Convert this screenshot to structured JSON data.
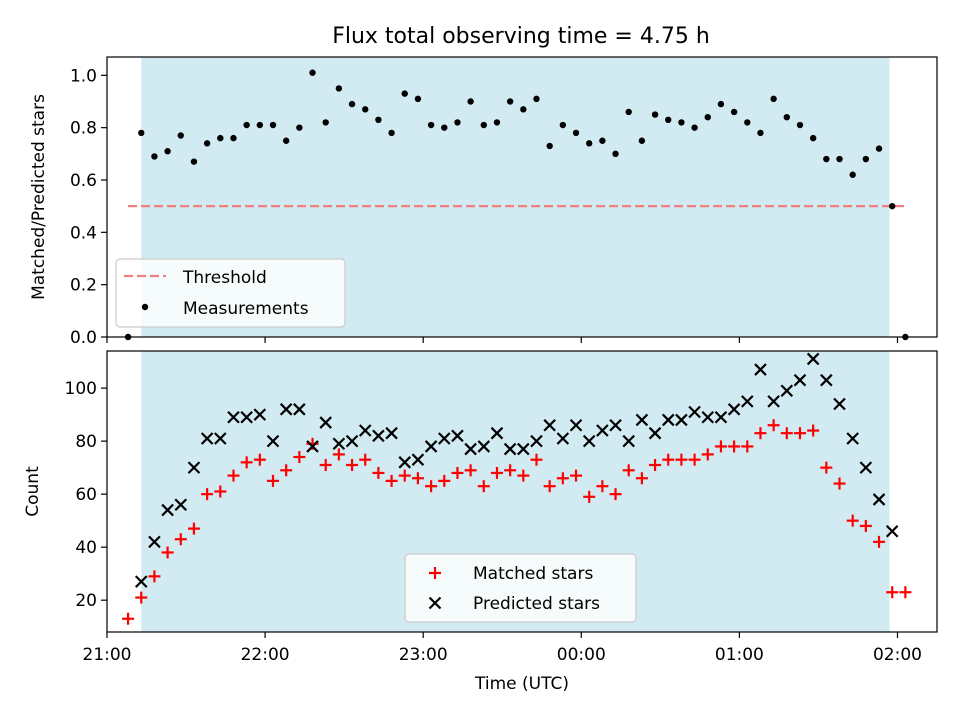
{
  "figure": {
    "title": "Flux total observing time = 4.75 h",
    "colors": {
      "observing_band": "#add8e6",
      "threshold": "#f08080",
      "measurements": "#000000",
      "matched": "#ff0000",
      "predicted": "#000000"
    }
  },
  "chart_data": [
    {
      "type": "scatter",
      "panel": "top",
      "title": "Flux total observing time = 4.75 h",
      "xlabel": "",
      "ylabel": "Matched/Predicted stars",
      "x_ticks": [
        "21:00",
        "22:00",
        "23:00",
        "00:00",
        "01:00",
        "02:00"
      ],
      "x_tick_labels_shown": false,
      "y_ticks": [
        "0.0",
        "0.2",
        "0.4",
        "0.6",
        "0.8",
        "1.0"
      ],
      "ylim": [
        0.0,
        1.07
      ],
      "xlim": [
        "21:00",
        "02:15"
      ],
      "observing_window": [
        "21:13",
        "01:57"
      ],
      "threshold": {
        "name": "Threshold",
        "value": 0.5,
        "x_range": [
          "21:08",
          "02:03"
        ],
        "style": "dashed"
      },
      "legend": {
        "position": "lower left",
        "entries": [
          "Threshold",
          "Measurements"
        ]
      },
      "series": [
        {
          "name": "Measurements",
          "marker": "dot",
          "x": [
            "21:08",
            "21:13",
            "21:18",
            "21:23",
            "21:28",
            "21:33",
            "21:38",
            "21:43",
            "21:48",
            "21:53",
            "21:58",
            "22:03",
            "22:08",
            "22:13",
            "22:18",
            "22:23",
            "22:28",
            "22:33",
            "22:38",
            "22:43",
            "22:48",
            "22:53",
            "22:58",
            "23:03",
            "23:08",
            "23:13",
            "23:18",
            "23:23",
            "23:28",
            "23:33",
            "23:38",
            "23:43",
            "23:48",
            "23:53",
            "23:58",
            "00:03",
            "00:08",
            "00:13",
            "00:18",
            "00:23",
            "00:28",
            "00:33",
            "00:38",
            "00:43",
            "00:48",
            "00:53",
            "00:58",
            "01:03",
            "01:08",
            "01:13",
            "01:18",
            "01:23",
            "01:28",
            "01:33",
            "01:38",
            "01:43",
            "01:48",
            "01:53",
            "01:58",
            "02:03"
          ],
          "y": [
            0.0,
            0.78,
            0.69,
            0.71,
            0.77,
            0.67,
            0.74,
            0.76,
            0.76,
            0.81,
            0.81,
            0.81,
            0.75,
            0.8,
            1.01,
            0.82,
            0.95,
            0.89,
            0.87,
            0.83,
            0.78,
            0.93,
            0.91,
            0.81,
            0.8,
            0.82,
            0.9,
            0.81,
            0.82,
            0.9,
            0.87,
            0.91,
            0.73,
            0.81,
            0.78,
            0.74,
            0.75,
            0.7,
            0.86,
            0.75,
            0.85,
            0.83,
            0.82,
            0.8,
            0.84,
            0.89,
            0.86,
            0.82,
            0.78,
            0.91,
            0.84,
            0.81,
            0.76,
            0.68,
            0.68,
            0.62,
            0.68,
            0.72,
            0.5,
            0.0
          ]
        }
      ]
    },
    {
      "type": "scatter",
      "panel": "bottom",
      "xlabel": "Time (UTC)",
      "ylabel": "Count",
      "x_ticks": [
        "21:00",
        "22:00",
        "23:00",
        "00:00",
        "01:00",
        "02:00"
      ],
      "y_ticks": [
        "20",
        "40",
        "60",
        "80",
        "100"
      ],
      "ylim": [
        8,
        114
      ],
      "xlim": [
        "21:00",
        "02:15"
      ],
      "observing_window": [
        "21:13",
        "01:57"
      ],
      "legend": {
        "position": "lower center",
        "entries": [
          "Matched stars",
          "Predicted stars"
        ]
      },
      "series": [
        {
          "name": "Matched stars",
          "marker": "plus",
          "x": [
            "21:08",
            "21:13",
            "21:18",
            "21:23",
            "21:28",
            "21:33",
            "21:38",
            "21:43",
            "21:48",
            "21:53",
            "21:58",
            "22:03",
            "22:08",
            "22:13",
            "22:18",
            "22:23",
            "22:28",
            "22:33",
            "22:38",
            "22:43",
            "22:48",
            "22:53",
            "22:58",
            "23:03",
            "23:08",
            "23:13",
            "23:18",
            "23:23",
            "23:28",
            "23:33",
            "23:38",
            "23:43",
            "23:48",
            "23:53",
            "23:58",
            "00:03",
            "00:08",
            "00:13",
            "00:18",
            "00:23",
            "00:28",
            "00:33",
            "00:38",
            "00:43",
            "00:48",
            "00:53",
            "00:58",
            "01:03",
            "01:08",
            "01:13",
            "01:18",
            "01:23",
            "01:28",
            "01:33",
            "01:38",
            "01:43",
            "01:48",
            "01:53",
            "01:58",
            "02:03"
          ],
          "y": [
            13,
            21,
            29,
            38,
            43,
            47,
            60,
            61,
            67,
            72,
            73,
            65,
            69,
            74,
            79,
            71,
            75,
            71,
            73,
            68,
            65,
            67,
            66,
            63,
            65,
            68,
            69,
            63,
            68,
            69,
            67,
            73,
            63,
            66,
            67,
            59,
            63,
            60,
            69,
            66,
            71,
            73,
            73,
            73,
            75,
            78,
            78,
            78,
            83,
            86,
            83,
            83,
            84,
            70,
            64,
            50,
            48,
            42,
            23,
            23
          ]
        },
        {
          "name": "Predicted stars",
          "marker": "x",
          "x": [
            "21:13",
            "21:18",
            "21:23",
            "21:28",
            "21:33",
            "21:38",
            "21:43",
            "21:48",
            "21:53",
            "21:58",
            "22:03",
            "22:08",
            "22:13",
            "22:18",
            "22:23",
            "22:28",
            "22:33",
            "22:38",
            "22:43",
            "22:48",
            "22:53",
            "22:58",
            "23:03",
            "23:08",
            "23:13",
            "23:18",
            "23:23",
            "23:28",
            "23:33",
            "23:38",
            "23:43",
            "23:48",
            "23:53",
            "23:58",
            "00:03",
            "00:08",
            "00:13",
            "00:18",
            "00:23",
            "00:28",
            "00:33",
            "00:38",
            "00:43",
            "00:48",
            "00:53",
            "00:58",
            "01:03",
            "01:08",
            "01:13",
            "01:18",
            "01:23",
            "01:28",
            "01:33",
            "01:38",
            "01:43",
            "01:48",
            "01:53",
            "01:58"
          ],
          "y": [
            27,
            42,
            54,
            56,
            70,
            81,
            81,
            89,
            89,
            90,
            80,
            92,
            92,
            78,
            87,
            79,
            80,
            84,
            82,
            83,
            72,
            73,
            78,
            81,
            82,
            77,
            78,
            83,
            77,
            77,
            80,
            86,
            81,
            86,
            80,
            84,
            86,
            80,
            88,
            83,
            88,
            88,
            91,
            89,
            89,
            92,
            95,
            107,
            95,
            99,
            103,
            111,
            103,
            94,
            81,
            70,
            58,
            46
          ]
        }
      ]
    }
  ]
}
